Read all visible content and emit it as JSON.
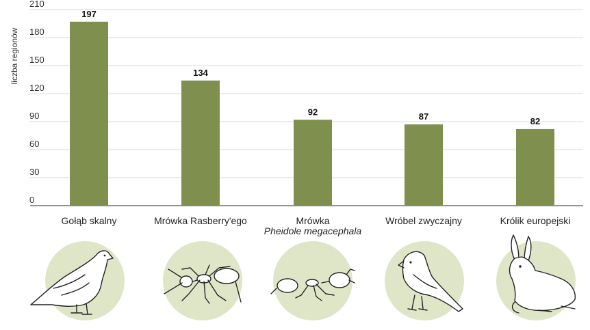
{
  "chart_data": {
    "type": "bar",
    "ylabel": "liczba regionów",
    "ylim": [
      0,
      210
    ],
    "yticks": [
      0,
      30,
      60,
      90,
      120,
      150,
      180,
      210
    ],
    "grid": true,
    "bar_color": "#7f8f4e",
    "categories": [
      {
        "line1": "Gołąb skalny",
        "line2": ""
      },
      {
        "line1": "Mrówka Rasberry'ego",
        "line2": ""
      },
      {
        "line1": "Mrówka",
        "line2": "Pheidole megacephala"
      },
      {
        "line1": "Wróbel zwyczajny",
        "line2": ""
      },
      {
        "line1": "Królik europejski",
        "line2": ""
      }
    ],
    "values": [
      197,
      134,
      92,
      87,
      82
    ],
    "icons": [
      "pigeon-icon",
      "crazy-ant-icon",
      "big-headed-ant-icon",
      "sparrow-icon",
      "rabbit-icon"
    ]
  },
  "colors": {
    "bar": "#7f8f4e",
    "circle": "#dfe6c8",
    "grid": "#d8d8d8"
  }
}
